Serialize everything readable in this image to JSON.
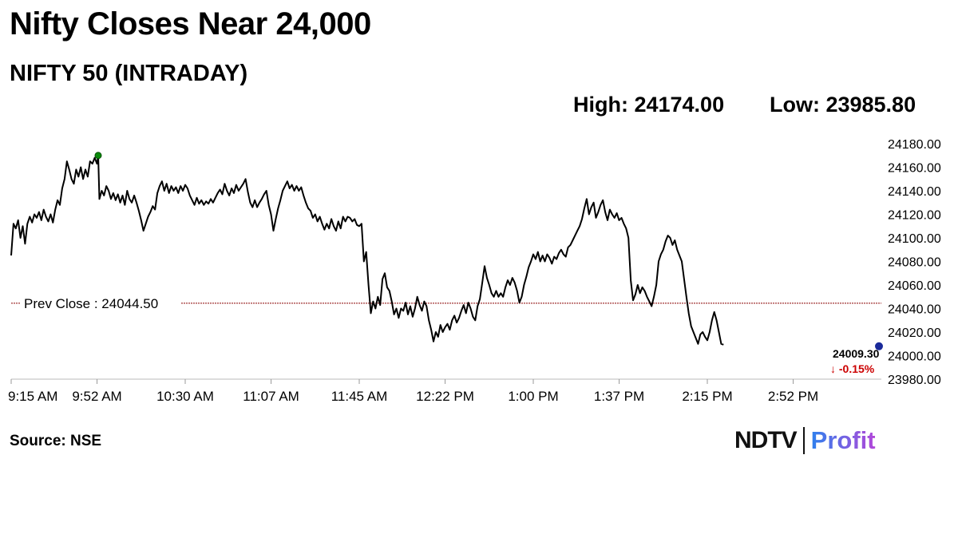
{
  "headline": "Nifty Closes Near 24,000",
  "subhead": "NIFTY 50 (INTRADAY)",
  "stats": {
    "high_label": "High: 24174.00",
    "low_label": "Low: 23985.80"
  },
  "source": "Source: NSE",
  "brand": {
    "left": "NDTV",
    "right": "Profit"
  },
  "colors": {
    "line": "#000000",
    "prev_close": "#8b0000",
    "high_marker": "#0a8a0a",
    "last_marker": "#1a2a9a",
    "change": "#cc0000"
  },
  "chart_data": {
    "type": "line",
    "ylim": [
      23980,
      24180
    ],
    "yticks": [
      "24180.00",
      "24160.00",
      "24140.00",
      "24120.00",
      "24100.00",
      "24080.00",
      "24060.00",
      "24040.00",
      "24020.00",
      "24000.00",
      "23980.00"
    ],
    "ytick_values": [
      24180,
      24160,
      24140,
      24120,
      24100,
      24080,
      24060,
      24040,
      24020,
      24000,
      23980
    ],
    "xticks": [
      "9:15 AM",
      "9:52 AM",
      "10:30 AM",
      "11:07 AM",
      "11:45 AM",
      "12:22 PM",
      "1:00 PM",
      "1:37 PM",
      "2:15 PM",
      "2:52 PM"
    ],
    "xtick_minutes": [
      0,
      37,
      75,
      112,
      150,
      187,
      225,
      262,
      300,
      337
    ],
    "x_range_minutes": [
      0,
      375
    ],
    "prev_close": 24044.5,
    "prev_close_label": "Prev Close : 24044.50",
    "last_value_label": "24009.30",
    "change_label": "↓ -0.15%",
    "series": [
      {
        "points": [
          [
            0,
            24085
          ],
          [
            1,
            24112
          ],
          [
            2,
            24108
          ],
          [
            3,
            24115
          ],
          [
            4,
            24100
          ],
          [
            5,
            24110
          ],
          [
            6,
            24095
          ],
          [
            7,
            24112
          ],
          [
            8,
            24118
          ],
          [
            9,
            24113
          ],
          [
            10,
            24120
          ],
          [
            11,
            24117
          ],
          [
            12,
            24122
          ],
          [
            13,
            24115
          ],
          [
            14,
            24124
          ],
          [
            15,
            24118
          ],
          [
            16,
            24114
          ],
          [
            17,
            24120
          ],
          [
            18,
            24113
          ],
          [
            19,
            24124
          ],
          [
            20,
            24132
          ],
          [
            21,
            24128
          ],
          [
            22,
            24142
          ],
          [
            23,
            24150
          ],
          [
            24,
            24165
          ],
          [
            25,
            24158
          ],
          [
            26,
            24150
          ],
          [
            27,
            24146
          ],
          [
            28,
            24158
          ],
          [
            29,
            24152
          ],
          [
            30,
            24160
          ],
          [
            31,
            24150
          ],
          [
            32,
            24158
          ],
          [
            33,
            24152
          ],
          [
            34,
            24165
          ],
          [
            35,
            24163
          ],
          [
            36,
            24168
          ],
          [
            37,
            24163
          ],
          [
            37.5,
            24170
          ],
          [
            38,
            24133
          ],
          [
            39,
            24140
          ],
          [
            40,
            24136
          ],
          [
            41,
            24144
          ],
          [
            42,
            24140
          ],
          [
            43,
            24133
          ],
          [
            44,
            24138
          ],
          [
            45,
            24132
          ],
          [
            46,
            24137
          ],
          [
            47,
            24130
          ],
          [
            48,
            24136
          ],
          [
            49,
            24128
          ],
          [
            50,
            24140
          ],
          [
            51,
            24133
          ],
          [
            52,
            24130
          ],
          [
            53,
            24136
          ],
          [
            54,
            24130
          ],
          [
            55,
            24123
          ],
          [
            56,
            24115
          ],
          [
            57,
            24106
          ],
          [
            58,
            24112
          ],
          [
            59,
            24118
          ],
          [
            60,
            24122
          ],
          [
            61,
            24127
          ],
          [
            62,
            24124
          ],
          [
            63,
            24138
          ],
          [
            64,
            24144
          ],
          [
            65,
            24148
          ],
          [
            66,
            24140
          ],
          [
            67,
            24146
          ],
          [
            68,
            24138
          ],
          [
            69,
            24144
          ],
          [
            70,
            24140
          ],
          [
            71,
            24143
          ],
          [
            72,
            24138
          ],
          [
            73,
            24144
          ],
          [
            74,
            24140
          ],
          [
            75,
            24145
          ],
          [
            76,
            24142
          ],
          [
            77,
            24136
          ],
          [
            78,
            24132
          ],
          [
            79,
            24128
          ],
          [
            80,
            24134
          ],
          [
            81,
            24129
          ],
          [
            82,
            24132
          ],
          [
            83,
            24128
          ],
          [
            84,
            24131
          ],
          [
            85,
            24129
          ],
          [
            86,
            24133
          ],
          [
            87,
            24130
          ],
          [
            88,
            24134
          ],
          [
            89,
            24138
          ],
          [
            90,
            24141
          ],
          [
            91,
            24137
          ],
          [
            92,
            24146
          ],
          [
            93,
            24140
          ],
          [
            94,
            24136
          ],
          [
            95,
            24142
          ],
          [
            96,
            24138
          ],
          [
            97,
            24145
          ],
          [
            98,
            24140
          ],
          [
            99,
            24143
          ],
          [
            100,
            24146
          ],
          [
            101,
            24150
          ],
          [
            102,
            24139
          ],
          [
            103,
            24130
          ],
          [
            104,
            24126
          ],
          [
            105,
            24132
          ],
          [
            106,
            24126
          ],
          [
            107,
            24130
          ],
          [
            108,
            24133
          ],
          [
            109,
            24137
          ],
          [
            110,
            24140
          ],
          [
            111,
            24128
          ],
          [
            112,
            24120
          ],
          [
            113,
            24106
          ],
          [
            114,
            24116
          ],
          [
            115,
            24125
          ],
          [
            116,
            24132
          ],
          [
            117,
            24140
          ],
          [
            118,
            24144
          ],
          [
            119,
            24148
          ],
          [
            120,
            24142
          ],
          [
            121,
            24145
          ],
          [
            122,
            24140
          ],
          [
            123,
            24144
          ],
          [
            124,
            24140
          ],
          [
            125,
            24143
          ],
          [
            126,
            24136
          ],
          [
            127,
            24130
          ],
          [
            128,
            24125
          ],
          [
            129,
            24123
          ],
          [
            130,
            24117
          ],
          [
            131,
            24120
          ],
          [
            132,
            24114
          ],
          [
            133,
            24118
          ],
          [
            134,
            24112
          ],
          [
            135,
            24107
          ],
          [
            136,
            24112
          ],
          [
            137,
            24108
          ],
          [
            138,
            24116
          ],
          [
            139,
            24110
          ],
          [
            140,
            24106
          ],
          [
            141,
            24114
          ],
          [
            142,
            24108
          ],
          [
            143,
            24118
          ],
          [
            144,
            24114
          ],
          [
            145,
            24118
          ],
          [
            146,
            24117
          ],
          [
            147,
            24114
          ],
          [
            148,
            24116
          ],
          [
            149,
            24111
          ],
          [
            150,
            24110
          ],
          [
            151,
            24112
          ],
          [
            152,
            24080
          ],
          [
            153,
            24088
          ],
          [
            154,
            24060
          ],
          [
            155,
            24036
          ],
          [
            156,
            24046
          ],
          [
            157,
            24040
          ],
          [
            158,
            24050
          ],
          [
            159,
            24043
          ],
          [
            160,
            24065
          ],
          [
            161,
            24070
          ],
          [
            162,
            24058
          ],
          [
            163,
            24055
          ],
          [
            164,
            24046
          ],
          [
            165,
            24035
          ],
          [
            166,
            24040
          ],
          [
            167,
            24032
          ],
          [
            168,
            24040
          ],
          [
            169,
            24038
          ],
          [
            170,
            24045
          ],
          [
            171,
            24035
          ],
          [
            172,
            24042
          ],
          [
            173,
            24033
          ],
          [
            174,
            24040
          ],
          [
            175,
            24050
          ],
          [
            176,
            24043
          ],
          [
            177,
            24038
          ],
          [
            178,
            24046
          ],
          [
            179,
            24042
          ],
          [
            180,
            24030
          ],
          [
            181,
            24022
          ],
          [
            182,
            24012
          ],
          [
            183,
            24020
          ],
          [
            184,
            24016
          ],
          [
            185,
            24026
          ],
          [
            186,
            24020
          ],
          [
            187,
            24024
          ],
          [
            188,
            24027
          ],
          [
            189,
            24022
          ],
          [
            190,
            24030
          ],
          [
            191,
            24034
          ],
          [
            192,
            24028
          ],
          [
            193,
            24032
          ],
          [
            194,
            24038
          ],
          [
            195,
            24043
          ],
          [
            196,
            24036
          ],
          [
            197,
            24045
          ],
          [
            198,
            24040
          ],
          [
            199,
            24033
          ],
          [
            200,
            24030
          ],
          [
            201,
            24042
          ],
          [
            202,
            24048
          ],
          [
            203,
            24062
          ],
          [
            204,
            24076
          ],
          [
            205,
            24066
          ],
          [
            206,
            24060
          ],
          [
            207,
            24053
          ],
          [
            208,
            24050
          ],
          [
            209,
            24055
          ],
          [
            210,
            24050
          ],
          [
            211,
            24053
          ],
          [
            212,
            24050
          ],
          [
            213,
            24058
          ],
          [
            214,
            24064
          ],
          [
            215,
            24060
          ],
          [
            216,
            24066
          ],
          [
            217,
            24062
          ],
          [
            218,
            24055
          ],
          [
            219,
            24045
          ],
          [
            220,
            24050
          ],
          [
            221,
            24060
          ],
          [
            222,
            24067
          ],
          [
            223,
            24075
          ],
          [
            224,
            24080
          ],
          [
            225,
            24086
          ],
          [
            226,
            24082
          ],
          [
            227,
            24088
          ],
          [
            228,
            24080
          ],
          [
            229,
            24085
          ],
          [
            230,
            24080
          ],
          [
            231,
            24086
          ],
          [
            232,
            24083
          ],
          [
            233,
            24078
          ],
          [
            234,
            24084
          ],
          [
            235,
            24082
          ],
          [
            236,
            24087
          ],
          [
            237,
            24090
          ],
          [
            238,
            24086
          ],
          [
            239,
            24084
          ],
          [
            240,
            24092
          ],
          [
            241,
            24094
          ],
          [
            242,
            24098
          ],
          [
            243,
            24102
          ],
          [
            244,
            24106
          ],
          [
            245,
            24110
          ],
          [
            246,
            24116
          ],
          [
            247,
            24125
          ],
          [
            248,
            24133
          ],
          [
            249,
            24120
          ],
          [
            250,
            24126
          ],
          [
            251,
            24130
          ],
          [
            252,
            24117
          ],
          [
            253,
            24122
          ],
          [
            254,
            24128
          ],
          [
            255,
            24132
          ],
          [
            256,
            24122
          ],
          [
            257,
            24115
          ],
          [
            258,
            24124
          ],
          [
            259,
            24120
          ],
          [
            260,
            24117
          ],
          [
            261,
            24121
          ],
          [
            262,
            24115
          ],
          [
            263,
            24117
          ],
          [
            264,
            24112
          ],
          [
            265,
            24108
          ],
          [
            266,
            24100
          ],
          [
            267,
            24064
          ],
          [
            268,
            24047
          ],
          [
            269,
            24052
          ],
          [
            270,
            24060
          ],
          [
            271,
            24053
          ],
          [
            272,
            24058
          ],
          [
            273,
            24055
          ],
          [
            274,
            24050
          ],
          [
            275,
            24046
          ],
          [
            276,
            24042
          ],
          [
            277,
            24050
          ],
          [
            278,
            24060
          ],
          [
            279,
            24080
          ],
          [
            280,
            24086
          ],
          [
            281,
            24090
          ],
          [
            282,
            24097
          ],
          [
            283,
            24102
          ],
          [
            284,
            24100
          ],
          [
            285,
            24094
          ],
          [
            286,
            24098
          ],
          [
            287,
            24090
          ],
          [
            288,
            24085
          ],
          [
            289,
            24080
          ],
          [
            290,
            24065
          ],
          [
            291,
            24050
          ],
          [
            292,
            24036
          ],
          [
            293,
            24025
          ],
          [
            294,
            24020
          ],
          [
            295,
            24015
          ],
          [
            296,
            24010
          ],
          [
            297,
            24018
          ],
          [
            298,
            24020
          ],
          [
            299,
            24016
          ],
          [
            300,
            24013
          ],
          [
            301,
            24020
          ],
          [
            302,
            24030
          ],
          [
            303,
            24037
          ],
          [
            304,
            24030
          ],
          [
            305,
            24020
          ],
          [
            306,
            24010
          ],
          [
            307,
            24009.3
          ]
        ]
      }
    ]
  }
}
